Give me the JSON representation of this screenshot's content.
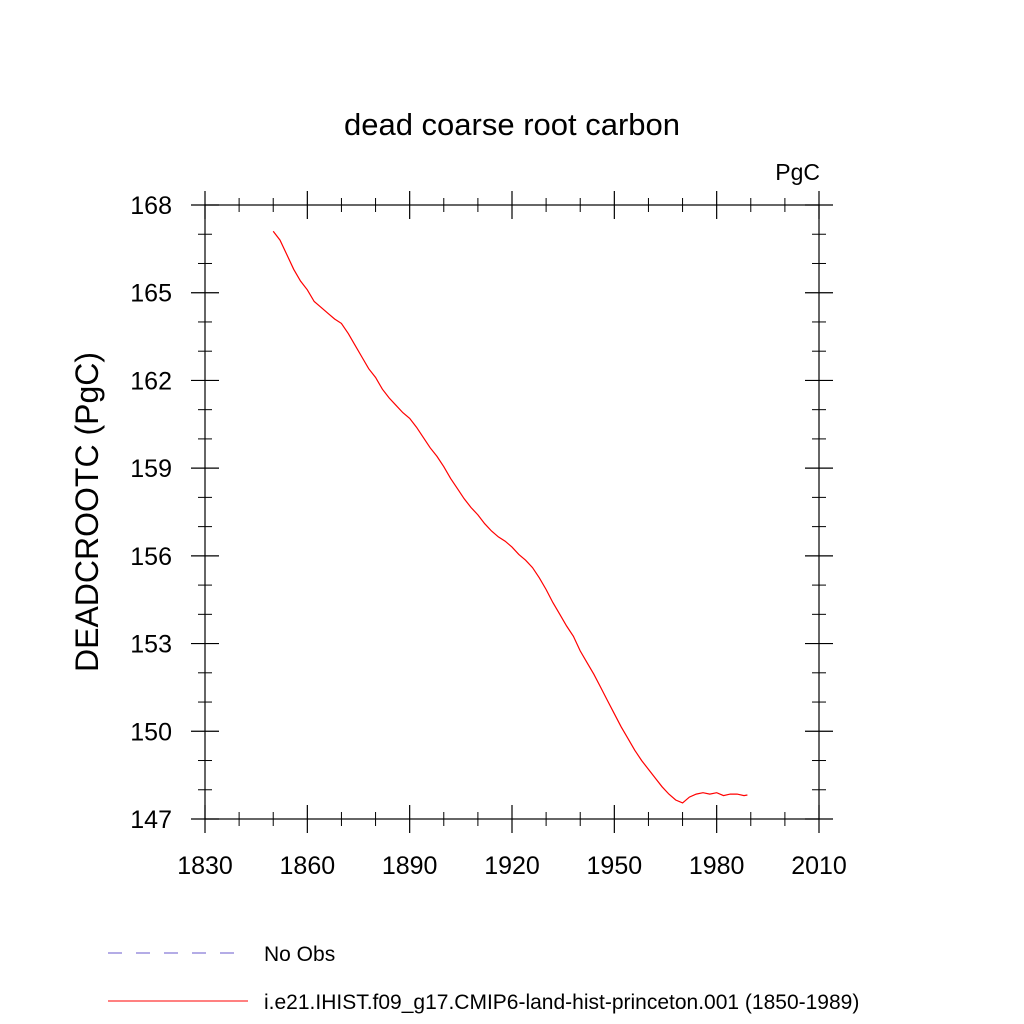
{
  "chart_data": {
    "type": "line",
    "title": "dead coarse root carbon",
    "units": "PgC",
    "ylabel": "DEADCROOTC  (PgC)",
    "xlabel": "",
    "xlim": [
      1830,
      2010
    ],
    "ylim": [
      147,
      168
    ],
    "x_ticks": [
      1830,
      1860,
      1890,
      1920,
      1950,
      1980,
      2010
    ],
    "y_ticks": [
      147,
      150,
      153,
      156,
      159,
      162,
      165,
      168
    ],
    "grid": false,
    "legend_placement": "bottom",
    "series": [
      {
        "name": "i.e21.IHIST.f09_g17.CMIP6-land-hist-princeton.001 (1850-1989)",
        "color": "#ff0000",
        "style": "solid",
        "x": [
          1850,
          1852,
          1854,
          1856,
          1858,
          1860,
          1862,
          1864,
          1866,
          1868,
          1870,
          1872,
          1874,
          1876,
          1878,
          1880,
          1882,
          1884,
          1886,
          1888,
          1890,
          1892,
          1894,
          1896,
          1898,
          1900,
          1902,
          1904,
          1906,
          1908,
          1910,
          1912,
          1914,
          1916,
          1918,
          1920,
          1922,
          1924,
          1926,
          1928,
          1930,
          1932,
          1934,
          1936,
          1938,
          1940,
          1942,
          1944,
          1946,
          1948,
          1950,
          1952,
          1954,
          1956,
          1958,
          1960,
          1962,
          1964,
          1966,
          1968,
          1970,
          1972,
          1974,
          1976,
          1978,
          1980,
          1982,
          1984,
          1986,
          1988,
          1989
        ],
        "y": [
          167.1,
          166.8,
          166.3,
          165.8,
          165.4,
          165.1,
          164.7,
          164.5,
          164.3,
          164.1,
          163.95,
          163.6,
          163.2,
          162.8,
          162.4,
          162.1,
          161.7,
          161.4,
          161.15,
          160.9,
          160.7,
          160.4,
          160.05,
          159.7,
          159.4,
          159.05,
          158.65,
          158.3,
          157.95,
          157.65,
          157.4,
          157.1,
          156.85,
          156.65,
          156.5,
          156.3,
          156.05,
          155.85,
          155.6,
          155.25,
          154.85,
          154.4,
          154.0,
          153.6,
          153.25,
          152.75,
          152.35,
          151.95,
          151.5,
          151.05,
          150.6,
          150.15,
          149.75,
          149.35,
          149.0,
          148.7,
          148.4,
          148.1,
          147.85,
          147.65,
          147.55,
          147.75,
          147.85,
          147.9,
          147.85,
          147.9,
          147.8,
          147.85,
          147.85,
          147.8,
          147.82
        ]
      },
      {
        "name": "No Obs",
        "color": "#6a5acd",
        "style": "dashed",
        "x": [],
        "y": []
      }
    ]
  }
}
